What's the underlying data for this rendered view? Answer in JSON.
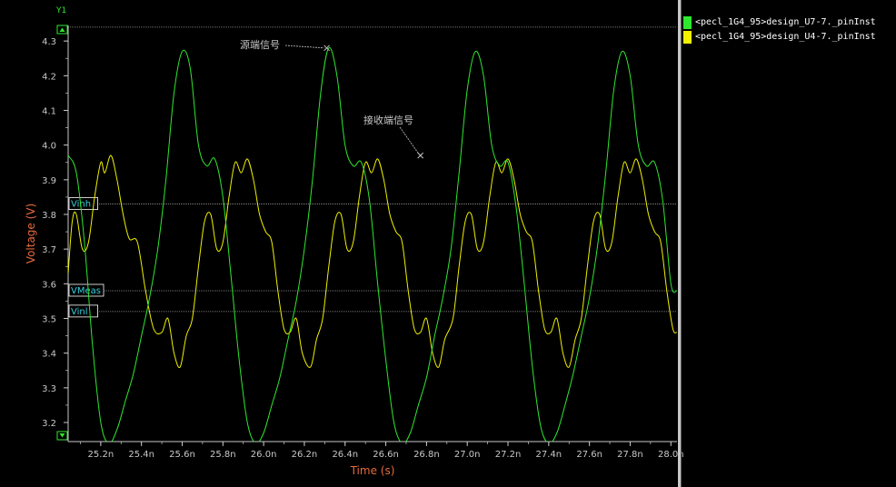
{
  "chart_data": {
    "type": "line",
    "title": "",
    "y_axis_name": "Y1",
    "xlabel": "Time (s)",
    "ylabel": "Voltage (V)",
    "xlim": [
      25.04,
      28.03
    ],
    "ylim": [
      3.145,
      4.345
    ],
    "x_ticks": [
      {
        "value": 25.2,
        "label": "25.2n"
      },
      {
        "value": 25.4,
        "label": "25.4n"
      },
      {
        "value": 25.6,
        "label": "25.6n"
      },
      {
        "value": 25.8,
        "label": "25.8n"
      },
      {
        "value": 26.0,
        "label": "26.0n"
      },
      {
        "value": 26.2,
        "label": "26.2n"
      },
      {
        "value": 26.4,
        "label": "26.4n"
      },
      {
        "value": 26.6,
        "label": "26.6n"
      },
      {
        "value": 26.8,
        "label": "26.8n"
      },
      {
        "value": 27.0,
        "label": "27.0n"
      },
      {
        "value": 27.2,
        "label": "27.2n"
      },
      {
        "value": 27.4,
        "label": "27.4n"
      },
      {
        "value": 27.6,
        "label": "27.6n"
      },
      {
        "value": 27.8,
        "label": "27.8n"
      },
      {
        "value": 28.0,
        "label": "28.0n"
      }
    ],
    "y_ticks": [
      {
        "value": 3.2,
        "label": "3.2"
      },
      {
        "value": 3.3,
        "label": "3.3"
      },
      {
        "value": 3.4,
        "label": "3.4"
      },
      {
        "value": 3.5,
        "label": "3.5"
      },
      {
        "value": 3.6,
        "label": "3.6"
      },
      {
        "value": 3.7,
        "label": "3.7"
      },
      {
        "value": 3.8,
        "label": "3.8"
      },
      {
        "value": 3.9,
        "label": "3.9"
      },
      {
        "value": 4.0,
        "label": "4.0"
      },
      {
        "value": 4.1,
        "label": "4.1"
      },
      {
        "value": 4.2,
        "label": "4.2"
      },
      {
        "value": 4.3,
        "label": "4.3"
      }
    ],
    "grid": false,
    "legend_position": "top-right",
    "reference_lines": [
      {
        "name": "Vinh",
        "y": 3.83
      },
      {
        "name": "VMeas",
        "y": 3.58
      },
      {
        "name": "Vinl",
        "y": 3.52
      },
      {
        "name": "",
        "y": 4.34
      }
    ],
    "annotations": [
      {
        "text": "源端信号",
        "x": 26.31,
        "y": 4.28
      },
      {
        "text": "接收端信号",
        "x": 26.77,
        "y": 3.97
      }
    ],
    "series": [
      {
        "name": "<pecl_1G4_95>design_U7-7._pinInst",
        "color": "#2ee82e",
        "x": [
          25.04,
          25.08,
          25.12,
          25.16,
          25.2,
          25.24,
          25.28,
          25.32,
          25.36,
          25.4,
          25.44,
          25.48,
          25.52,
          25.56,
          25.6,
          25.64,
          25.68,
          25.72,
          25.76,
          25.8,
          25.84,
          25.88,
          25.92,
          25.96,
          26.0,
          26.04,
          26.08,
          26.12,
          26.16,
          26.2,
          26.24,
          26.28,
          26.32,
          26.36,
          26.4,
          26.44,
          26.48,
          26.52,
          26.56,
          26.6,
          26.64,
          26.68,
          26.72,
          26.76,
          26.8,
          26.84,
          26.88,
          26.92,
          26.96,
          27.0,
          27.04,
          27.08,
          27.12,
          27.16,
          27.2,
          27.24,
          27.28,
          27.32,
          27.36,
          27.4,
          27.44,
          27.48,
          27.52,
          27.56,
          27.6,
          27.64,
          27.68,
          27.72,
          27.76,
          27.8,
          27.84,
          27.88,
          27.92,
          27.96,
          28.0,
          28.03
        ],
        "values": [
          3.97,
          3.92,
          3.72,
          3.42,
          3.2,
          3.14,
          3.18,
          3.26,
          3.34,
          3.45,
          3.56,
          3.7,
          3.9,
          4.15,
          4.27,
          4.22,
          4.0,
          3.94,
          3.96,
          3.85,
          3.62,
          3.38,
          3.2,
          3.14,
          3.17,
          3.25,
          3.33,
          3.44,
          3.55,
          3.7,
          3.9,
          4.15,
          4.28,
          4.2,
          4.0,
          3.94,
          3.95,
          3.84,
          3.6,
          3.38,
          3.2,
          3.14,
          3.17,
          3.25,
          3.33,
          3.45,
          3.56,
          3.7,
          3.92,
          4.16,
          4.27,
          4.2,
          4.0,
          3.94,
          3.95,
          3.82,
          3.6,
          3.36,
          3.19,
          3.14,
          3.17,
          3.25,
          3.34,
          3.45,
          3.56,
          3.71,
          3.92,
          4.16,
          4.27,
          4.2,
          4.0,
          3.94,
          3.95,
          3.84,
          3.6,
          3.58
        ]
      },
      {
        "name": "<pecl_1G4_95>design_U4-7._pinInst",
        "color": "#f0f000",
        "x": [
          25.04,
          25.06,
          25.08,
          25.11,
          25.14,
          25.17,
          25.2,
          25.22,
          25.25,
          25.28,
          25.31,
          25.34,
          25.38,
          25.42,
          25.46,
          25.5,
          25.53,
          25.56,
          25.59,
          25.62,
          25.65,
          25.68,
          25.71,
          25.74,
          25.77,
          25.8,
          25.83,
          25.86,
          25.89,
          25.92,
          25.95,
          25.98,
          26.01,
          26.04,
          26.07,
          26.1,
          26.13,
          26.16,
          26.19,
          26.23,
          26.26,
          26.29,
          26.32,
          26.35,
          26.38,
          26.41,
          26.44,
          26.47,
          26.5,
          26.53,
          26.56,
          26.59,
          26.62,
          26.65,
          26.68,
          26.71,
          26.74,
          26.77,
          26.8,
          26.83,
          26.86,
          26.89,
          26.93,
          26.96,
          26.99,
          27.02,
          27.05,
          27.08,
          27.11,
          27.14,
          27.17,
          27.2,
          27.23,
          27.26,
          27.29,
          27.32,
          27.35,
          27.38,
          27.41,
          27.44,
          27.47,
          27.5,
          27.53,
          27.56,
          27.59,
          27.62,
          27.65,
          27.68,
          27.71,
          27.74,
          27.77,
          27.8,
          27.83,
          27.86,
          27.89,
          27.92,
          27.95,
          27.98,
          28.01,
          28.03
        ],
        "values": [
          3.63,
          3.78,
          3.8,
          3.7,
          3.72,
          3.85,
          3.95,
          3.92,
          3.97,
          3.9,
          3.8,
          3.73,
          3.72,
          3.58,
          3.47,
          3.46,
          3.5,
          3.4,
          3.36,
          3.45,
          3.5,
          3.65,
          3.78,
          3.8,
          3.7,
          3.72,
          3.85,
          3.95,
          3.92,
          3.96,
          3.9,
          3.8,
          3.75,
          3.72,
          3.58,
          3.47,
          3.46,
          3.5,
          3.4,
          3.36,
          3.44,
          3.5,
          3.65,
          3.78,
          3.8,
          3.7,
          3.72,
          3.85,
          3.95,
          3.92,
          3.96,
          3.9,
          3.8,
          3.75,
          3.72,
          3.58,
          3.47,
          3.46,
          3.5,
          3.4,
          3.36,
          3.44,
          3.5,
          3.65,
          3.78,
          3.8,
          3.7,
          3.72,
          3.85,
          3.95,
          3.92,
          3.96,
          3.9,
          3.8,
          3.75,
          3.72,
          3.58,
          3.47,
          3.46,
          3.5,
          3.4,
          3.36,
          3.44,
          3.5,
          3.65,
          3.78,
          3.8,
          3.7,
          3.72,
          3.85,
          3.95,
          3.92,
          3.96,
          3.9,
          3.8,
          3.75,
          3.72,
          3.58,
          3.47,
          3.46
        ]
      }
    ]
  },
  "colors": {
    "background": "#000000",
    "axis": "#c8c8c8",
    "tick_label": "#c8c8c8",
    "axis_title": "#e86a3a",
    "ref_line": "#9a9a9a",
    "ref_label": "#35d0e0",
    "y1_label": "#2ee82e",
    "scroll_arrow": "#2ee82e",
    "annotation": "#c8c8c8"
  },
  "icons": {
    "scroll_up": "triangle-up-icon",
    "scroll_down": "triangle-down-icon"
  }
}
